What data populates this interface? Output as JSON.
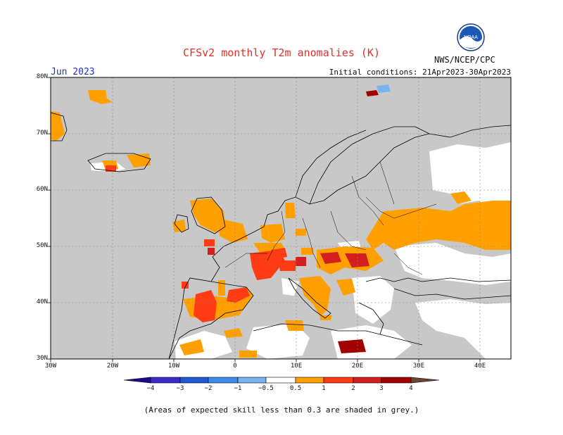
{
  "header": {
    "title": "CFSv2 monthly T2m anomalies (K)",
    "month": "Jun 2023",
    "initial_conditions": "Initial conditions: 21Apr2023-30Apr2023",
    "agency": "NWS/NCEP/CPC",
    "logo_text": "NOAA"
  },
  "map": {
    "lat_labels": [
      "80N",
      "70N",
      "60N",
      "50N",
      "40N",
      "30N"
    ],
    "lon_labels": [
      "30W",
      "20W",
      "10W",
      "0",
      "10E",
      "20E",
      "30E",
      "40E"
    ],
    "colors": {
      "ocean": "#c8c8c8",
      "land_low_skill": "#c8c8c8",
      "neutral": "#ffffff",
      "warm_0_5": "#ffa000",
      "warm_1": "#ff3c14",
      "warm_2": "#d21e1e",
      "warm_3": "#a00000",
      "cool_0_5": "#78b4f0"
    }
  },
  "colorbar": {
    "labels": [
      "−4",
      "−3",
      "−2",
      "−1",
      "−0.5",
      "0.5",
      "1",
      "2",
      "3",
      "4"
    ],
    "colors": [
      "#1e0a8c",
      "#3c28c8",
      "#1e5ad2",
      "#3c8cf0",
      "#78b4f0",
      "#ffffff",
      "#ffa000",
      "#ff3c14",
      "#d21e1e",
      "#a00000",
      "#c8a09a",
      "#6e4632"
    ]
  },
  "footnote": "(Areas of expected skill less than 0.3 are shaded in grey.)"
}
